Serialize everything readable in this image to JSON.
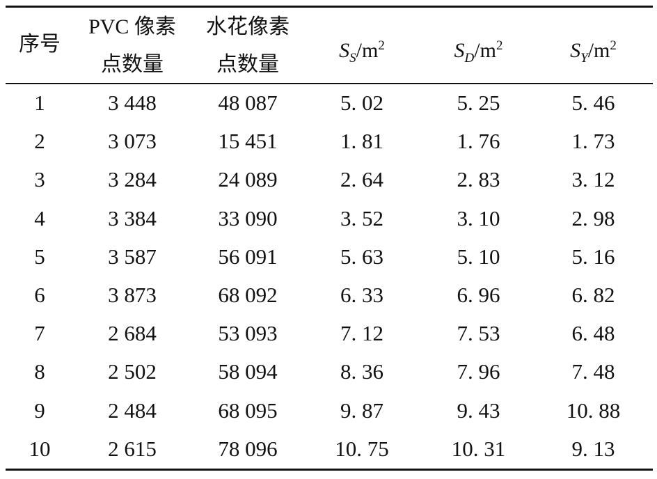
{
  "table": {
    "headers": {
      "index": "序号",
      "pvc_line1": "PVC 像素",
      "pvc_line2": "点数量",
      "spray_line1": "水花像素",
      "spray_line2": "点数量",
      "ss_symbol": "S",
      "ss_sub": "S",
      "sd_symbol": "S",
      "sd_sub": "D",
      "sy_symbol": "S",
      "sy_sub": "Y",
      "unit": "/m",
      "unit_exp": "2"
    },
    "rows": [
      [
        "1",
        "3 448",
        "48 087",
        "5. 02",
        "5. 25",
        "5. 46"
      ],
      [
        "2",
        "3 073",
        "15 451",
        "1. 81",
        "1. 76",
        "1. 73"
      ],
      [
        "3",
        "3 284",
        "24 089",
        "2. 64",
        "2. 83",
        "3. 12"
      ],
      [
        "4",
        "3 384",
        "33 090",
        "3. 52",
        "3. 10",
        "2. 98"
      ],
      [
        "5",
        "3 587",
        "56 091",
        "5. 63",
        "5. 10",
        "5. 16"
      ],
      [
        "6",
        "3 873",
        "68 092",
        "6. 33",
        "6. 96",
        "6. 82"
      ],
      [
        "7",
        "2 684",
        "53 093",
        "7. 12",
        "7. 53",
        "6. 48"
      ],
      [
        "8",
        "2 502",
        "58 094",
        "8. 36",
        "7. 96",
        "7. 48"
      ],
      [
        "9",
        "2 484",
        "68 095",
        "9. 87",
        "9. 43",
        "10. 88"
      ],
      [
        "10",
        "2 615",
        "78 096",
        "10. 75",
        "10. 31",
        "9. 13"
      ]
    ]
  }
}
